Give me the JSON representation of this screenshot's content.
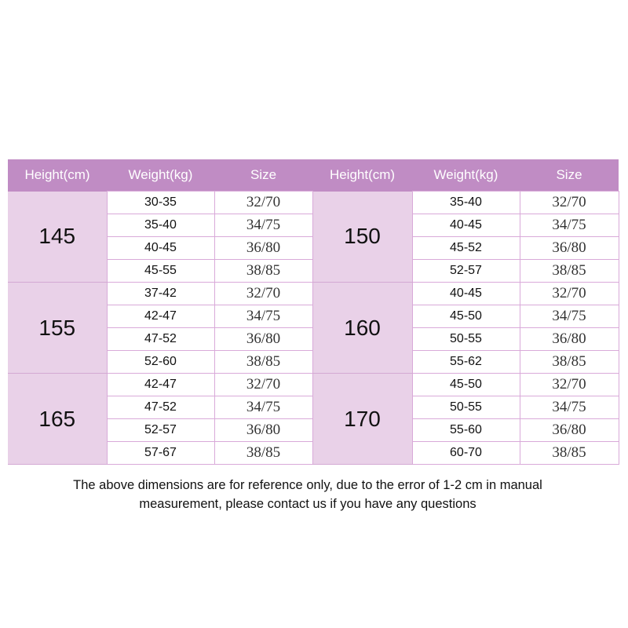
{
  "headers": [
    "Height(cm)",
    "Weight(kg)",
    "Size",
    "Height(cm)",
    "Weight(kg)",
    "Size"
  ],
  "colors": {
    "header": "#c08cc4",
    "height_cell": "#e9d1e8",
    "border": "#d9aad9"
  },
  "left": [
    {
      "height": "145",
      "rows": [
        [
          "30-35",
          "32/70"
        ],
        [
          "35-40",
          "34/75"
        ],
        [
          "40-45",
          "36/80"
        ],
        [
          "45-55",
          "38/85"
        ]
      ]
    },
    {
      "height": "155",
      "rows": [
        [
          "37-42",
          "32/70"
        ],
        [
          "42-47",
          "34/75"
        ],
        [
          "47-52",
          "36/80"
        ],
        [
          "52-60",
          "38/85"
        ]
      ]
    },
    {
      "height": "165",
      "rows": [
        [
          "42-47",
          "32/70"
        ],
        [
          "47-52",
          "34/75"
        ],
        [
          "52-57",
          "36/80"
        ],
        [
          "57-67",
          "38/85"
        ]
      ]
    }
  ],
  "right": [
    {
      "height": "150",
      "rows": [
        [
          "35-40",
          "32/70"
        ],
        [
          "40-45",
          "34/75"
        ],
        [
          "45-52",
          "36/80"
        ],
        [
          "52-57",
          "38/85"
        ]
      ]
    },
    {
      "height": "160",
      "rows": [
        [
          "40-45",
          "32/70"
        ],
        [
          "45-50",
          "34/75"
        ],
        [
          "50-55",
          "36/80"
        ],
        [
          "55-62",
          "38/85"
        ]
      ]
    },
    {
      "height": "170",
      "rows": [
        [
          "45-50",
          "32/70"
        ],
        [
          "50-55",
          "34/75"
        ],
        [
          "55-60",
          "36/80"
        ],
        [
          "60-70",
          "38/85"
        ]
      ]
    }
  ],
  "note": {
    "line1": "The above dimensions are for reference only, due to the error of 1-2 cm in manual",
    "line2": "measurement, please contact us if you have any questions"
  }
}
